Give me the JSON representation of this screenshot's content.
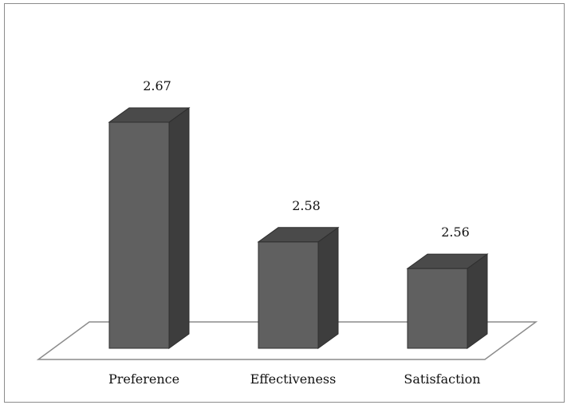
{
  "chart_data": {
    "type": "bar",
    "categories": [
      "Preference",
      "Effectiveness",
      "Satisfaction"
    ],
    "values": [
      2.67,
      2.58,
      2.56
    ],
    "data_labels": [
      "2.67",
      "2.58",
      "2.56"
    ],
    "title": "",
    "xlabel": "",
    "ylabel": "",
    "ylim": [
      2.5,
      2.7
    ],
    "style": "3d-column",
    "grid": false,
    "legend": "none",
    "colors": {
      "bar_front": "#606060",
      "bar_side": "#3d3d3d",
      "bar_top": "#4a4a4a",
      "bar_edge": "#2f2f2f",
      "floor_line": "#8c8c8c",
      "frame_border": "#8c8c8c"
    }
  }
}
